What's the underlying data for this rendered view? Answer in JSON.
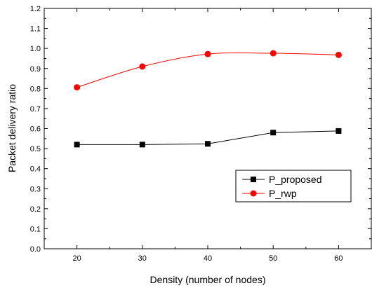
{
  "chart_data": {
    "type": "line",
    "title": "",
    "xlabel": "Density (number of nodes)",
    "ylabel": "Packet delivery ratio",
    "x": [
      20,
      30,
      40,
      50,
      60
    ],
    "xlim": [
      15,
      65
    ],
    "ylim": [
      0.0,
      1.2
    ],
    "xticks": [
      "20",
      "30",
      "40",
      "50",
      "60"
    ],
    "yticks": [
      "0.0",
      "0.1",
      "0.2",
      "0.3",
      "0.4",
      "0.5",
      "0.6",
      "0.7",
      "0.8",
      "0.9",
      "1.0",
      "1.1",
      "1.2"
    ],
    "grid": false,
    "legend_position": "lower-right",
    "series": [
      {
        "name": "P_proposed",
        "values": [
          0.52,
          0.52,
          0.524,
          0.58,
          0.588
        ],
        "color": "#000000",
        "marker": "square",
        "smooth": false
      },
      {
        "name": "P_rwp",
        "values": [
          0.806,
          0.91,
          0.972,
          0.976,
          0.968
        ],
        "color": "#ff0000",
        "marker": "circle",
        "smooth": true
      }
    ]
  }
}
